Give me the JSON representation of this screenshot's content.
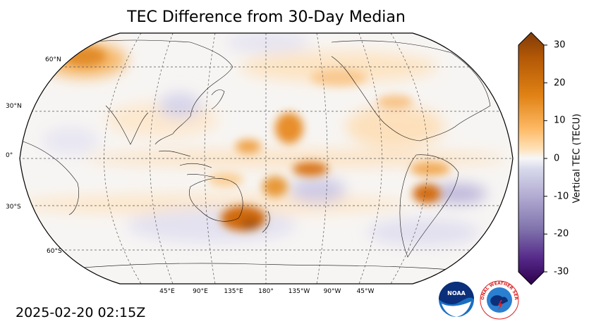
{
  "title": "TEC Difference from 30-Day Median",
  "timestamp": "2025-02-20 02:15Z",
  "colorbar": {
    "label": "Vertical TEC (TECU)",
    "ticks": [
      "30",
      "20",
      "10",
      "0",
      "-10",
      "-20",
      "-30"
    ],
    "min": -30,
    "max": 30,
    "colormap": "PuOr_r",
    "low_color": "#2d004b",
    "mid_color": "#f7f7f7",
    "high_color": "#7f3b08"
  },
  "map": {
    "projection": "Robinson, centered 180°",
    "lat_labels": [
      "60°N",
      "30°N",
      "0°",
      "30°S",
      "60°S"
    ],
    "lon_labels": [
      "45°E",
      "90°E",
      "135°E",
      "180°",
      "135°W",
      "90°W",
      "45°W"
    ]
  },
  "logos": {
    "noaa": "NOAA",
    "nws": "NATIONAL WEATHER SERVICE"
  }
}
